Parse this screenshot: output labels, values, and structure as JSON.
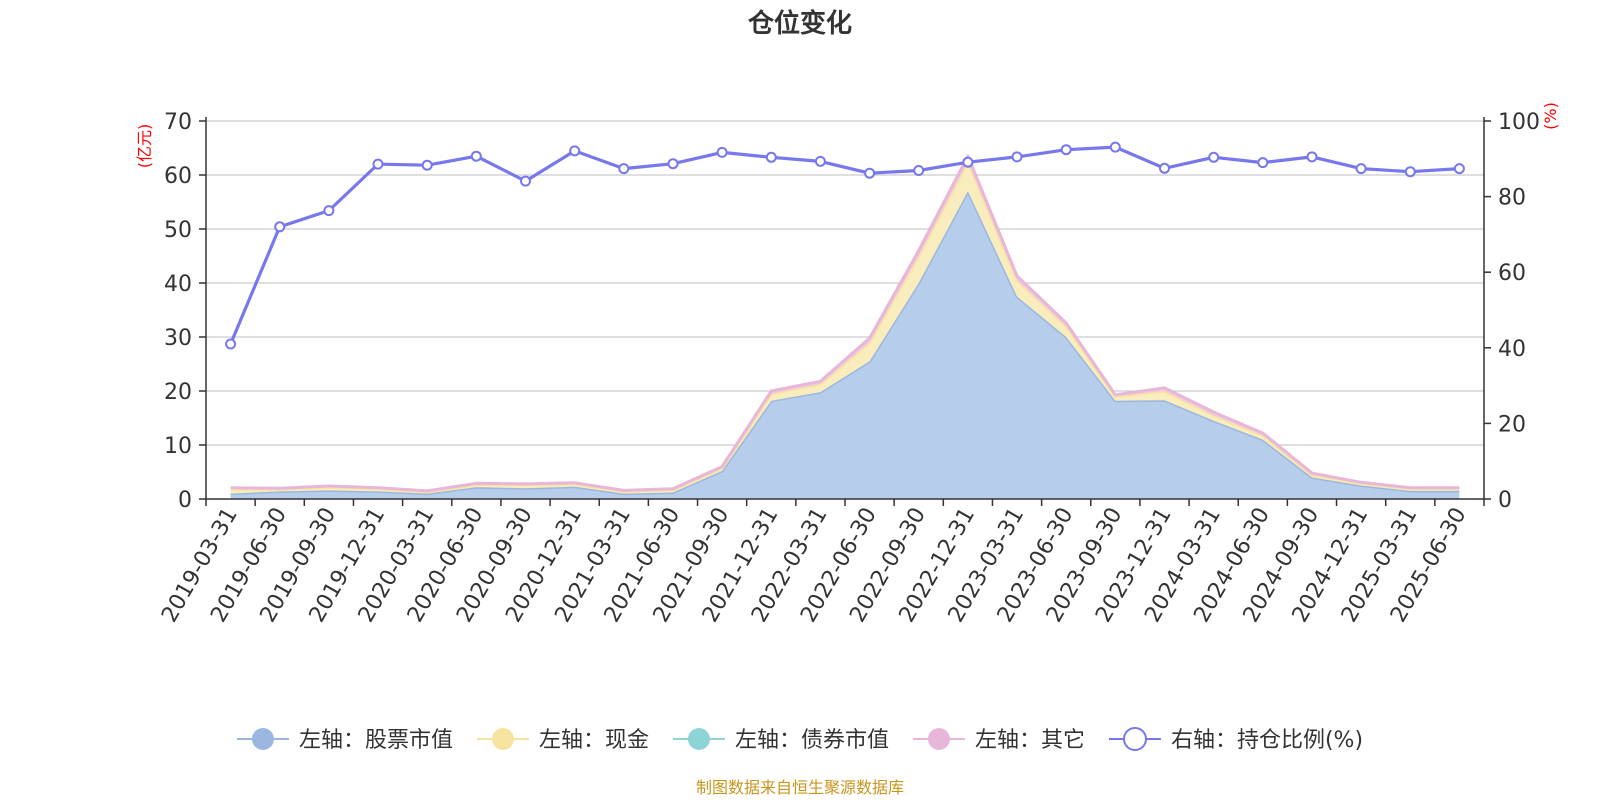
{
  "chart_data": {
    "type": "area",
    "title": "仓位变化",
    "source": "制图数据来自恒生聚源数据库",
    "ylabel_left": "(亿元)",
    "ylabel_right": "(%)",
    "ylim_left": [
      0,
      70
    ],
    "yticks_left": [
      0,
      10,
      20,
      30,
      40,
      50,
      60,
      70
    ],
    "ylim_right": [
      0,
      100
    ],
    "yticks_right": [
      0,
      20,
      40,
      60,
      80,
      100
    ],
    "grid": true,
    "legend_position": "bottom",
    "categories": [
      "2019-03-31",
      "2019-06-30",
      "2019-09-30",
      "2019-12-31",
      "2020-03-31",
      "2020-06-30",
      "2020-09-30",
      "2020-12-31",
      "2021-03-31",
      "2021-06-30",
      "2021-09-30",
      "2021-12-31",
      "2022-03-31",
      "2022-06-30",
      "2022-09-30",
      "2022-12-31",
      "2023-03-31",
      "2023-06-30",
      "2023-09-30",
      "2023-12-31",
      "2024-03-31",
      "2024-06-30",
      "2024-09-30",
      "2024-12-31",
      "2025-03-31",
      "2025-06-30"
    ],
    "series": [
      {
        "name": "左轴：股票市值",
        "axis": "left",
        "color": "#9bb7e0",
        "fill": "#b7cdec",
        "values": [
          1.0,
          1.4,
          1.6,
          1.4,
          1.0,
          2.2,
          2.0,
          2.3,
          1.0,
          1.2,
          5.2,
          18.2,
          19.8,
          25.5,
          40.0,
          57.0,
          37.5,
          30.0,
          18.2,
          18.3,
          14.5,
          11.0,
          4.0,
          2.5,
          1.5,
          1.5
        ]
      },
      {
        "name": "左轴：现金",
        "axis": "left",
        "color": "#f7e3a0",
        "fill": "#f9edbe",
        "values": [
          0.8,
          0.4,
          0.6,
          0.5,
          0.3,
          0.5,
          0.6,
          0.5,
          0.4,
          0.5,
          0.5,
          1.3,
          1.5,
          3.5,
          5.0,
          5.5,
          3.0,
          2.0,
          0.8,
          1.7,
          1.0,
          0.8,
          0.5,
          0.4,
          0.4,
          0.4
        ]
      },
      {
        "name": "左轴：债券市值",
        "axis": "left",
        "color": "#8ed3d6",
        "fill": "#a8dde0",
        "values": [
          0,
          0,
          0,
          0,
          0,
          0,
          0,
          0,
          0,
          0,
          0,
          0,
          0,
          0,
          0,
          0,
          0,
          0,
          0,
          0,
          0,
          0,
          0,
          0,
          0,
          0
        ]
      },
      {
        "name": "左轴：其它",
        "axis": "left",
        "color": "#e7b6d9",
        "fill": "#efc9e3",
        "values": [
          0.3,
          0.2,
          0.2,
          0.2,
          0.2,
          0.2,
          0.2,
          0.2,
          0.2,
          0.2,
          0.3,
          0.5,
          0.5,
          0.8,
          1.0,
          1.0,
          0.8,
          0.6,
          0.3,
          0.6,
          0.6,
          0.4,
          0.3,
          0.2,
          0.2,
          0.2
        ]
      },
      {
        "name": "右轴：持仓比例(%)",
        "axis": "right",
        "color": "#7777ee",
        "fill": "none",
        "values": [
          41.0,
          72.0,
          76.3,
          88.6,
          88.3,
          90.7,
          84.1,
          92.1,
          87.4,
          88.7,
          91.7,
          90.4,
          89.3,
          86.2,
          86.9,
          89.1,
          90.5,
          92.4,
          93.1,
          87.5,
          90.4,
          89.0,
          90.5,
          87.4,
          86.6,
          87.4
        ]
      }
    ]
  }
}
